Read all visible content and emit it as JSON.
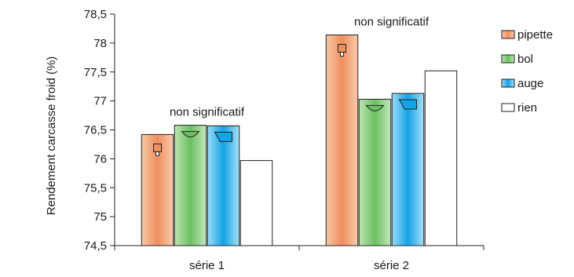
{
  "chart_data": {
    "type": "bar",
    "ylabel": "Rendement carcasse froid (%)",
    "ylim": [
      74.5,
      78.5
    ],
    "yticks": [
      74.5,
      75,
      75.5,
      76,
      76.5,
      77,
      77.5,
      78,
      78.5
    ],
    "ytick_labels": [
      "74,5",
      "75",
      "75,5",
      "76",
      "76,5",
      "77",
      "77,5",
      "78",
      "78,5"
    ],
    "categories": [
      "série 1",
      "série 2"
    ],
    "series": [
      {
        "name": "pipette",
        "values": [
          76.42,
          78.14
        ],
        "color": "#f4a77a",
        "icon": "pipette-icon"
      },
      {
        "name": "bol",
        "values": [
          76.58,
          77.03
        ],
        "color": "#8fcf85",
        "icon": "bowl-icon"
      },
      {
        "name": "auge",
        "values": [
          76.57,
          77.13
        ],
        "color": "#3cb4ea",
        "icon": "trough-icon"
      },
      {
        "name": "rien",
        "values": [
          75.97,
          77.52
        ],
        "color": "#ffffff"
      }
    ],
    "annotations": [
      "non significatif",
      "non significatif"
    ],
    "legend_position": "right",
    "grid": false
  }
}
